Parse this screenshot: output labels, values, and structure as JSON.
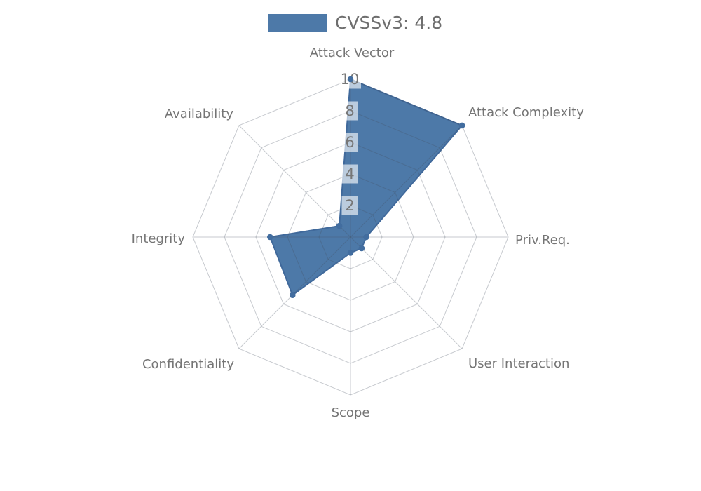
{
  "figure": {
    "background": "#ffffff"
  },
  "legend": {
    "label": "CVSSv3: 4.8",
    "swatch_color": "#4d79a8",
    "text_color": "#6e6e6e"
  },
  "chart_data": {
    "type": "radar",
    "title": "",
    "categories": [
      "Attack Vector",
      "Attack Complexity",
      "Priv.Req.",
      "User Interaction",
      "Scope",
      "Confidentiality",
      "Integrity",
      "Availability"
    ],
    "series": [
      {
        "name": "CVSSv3: 4.8",
        "values": [
          10,
          10,
          1,
          1,
          1,
          5.2,
          5.1,
          1
        ],
        "color": "#4d79a8",
        "edge_color": "#40699b",
        "marker_color": "#426d9f"
      }
    ],
    "rlim": [
      0,
      10
    ],
    "rticks": [
      2,
      4,
      6,
      8,
      10
    ],
    "grid": true,
    "start_axis": "top",
    "direction": "clockwise",
    "legend_position": "top-center",
    "grid_color": "rgba(70,80,95,0.30)",
    "axis_label_color": "#757575",
    "tick_label_color": "#777777",
    "tick_box_fill": "rgba(255,255,255,0.62)"
  }
}
